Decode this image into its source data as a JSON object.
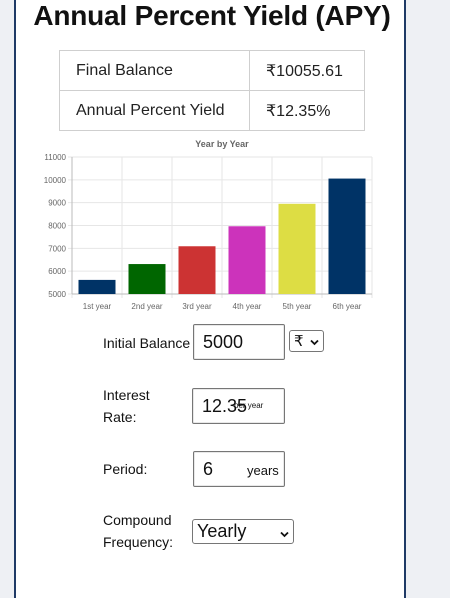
{
  "title": "Annual Percent Yield (APY)",
  "summary": [
    {
      "label": "Final Balance",
      "value": "₹10055.61"
    },
    {
      "label": "Annual Percent Yield",
      "value": "₹12.35%"
    }
  ],
  "chart_data": {
    "type": "bar",
    "title": "Year by Year",
    "categories": [
      "1st year",
      "2nd year",
      "3rd year",
      "4th year",
      "5th year",
      "6th year"
    ],
    "values": [
      5617.5,
      6311.26,
      7090.69,
      7966.38,
      8950.23,
      10055.61
    ],
    "colors": [
      "#003366",
      "#006600",
      "#cc3333",
      "#cc33bb",
      "#dddd44",
      "#003366"
    ],
    "ylim": [
      5000,
      11000
    ],
    "yticks": [
      5000,
      6000,
      7000,
      8000,
      9000,
      10000,
      11000
    ],
    "grid": true
  },
  "form": {
    "initial_balance": {
      "label": "Initial Balance",
      "value": "5000",
      "currency": "₹"
    },
    "interest_rate": {
      "label": "Interest Rate:",
      "value": "12.35",
      "suffix": "per year"
    },
    "period": {
      "label": "Period:",
      "value": "6",
      "suffix": "years"
    },
    "compound_frequency": {
      "label": "Compound Frequency:",
      "value": "Yearly"
    }
  }
}
